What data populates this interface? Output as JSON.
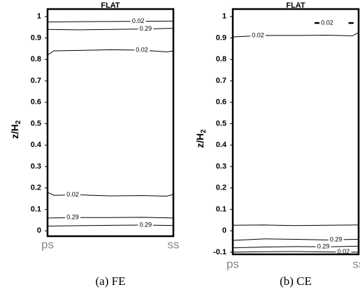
{
  "chart_data": [
    {
      "type": "contour",
      "title": "FLAT",
      "ylabel": "z/H",
      "ylabel_subscript": "2",
      "caption": "(a)  FE",
      "xlim": [
        0,
        1
      ],
      "xticks": [
        {
          "value": 0,
          "label": "ps"
        },
        {
          "value": 1,
          "label": "ss"
        }
      ],
      "ylim": [
        -0.025,
        1.035
      ],
      "yticks": [
        0,
        0.1,
        0.2,
        0.3,
        0.4,
        0.5,
        0.6,
        0.7,
        0.8,
        0.9,
        1
      ],
      "color": "#000000",
      "series": [
        {
          "name": "0.02",
          "x": [
            0,
            0.25,
            0.5,
            0.75,
            1
          ],
          "values": [
            0.975,
            0.976,
            0.977,
            0.978,
            0.979
          ]
        },
        {
          "name": "0.29",
          "x": [
            0,
            0.25,
            0.5,
            0.75,
            1
          ],
          "values": [
            0.94,
            0.938,
            0.94,
            0.942,
            0.945
          ]
        },
        {
          "name": "0.02",
          "x": [
            0,
            0.05,
            0.25,
            0.5,
            0.75,
            0.95,
            1
          ],
          "values": [
            0.82,
            0.84,
            0.842,
            0.845,
            0.843,
            0.835,
            0.84
          ]
        },
        {
          "name": "0.02",
          "x": [
            0,
            0.05,
            0.25,
            0.5,
            0.75,
            0.95,
            1
          ],
          "values": [
            0.18,
            0.166,
            0.168,
            0.163,
            0.165,
            0.162,
            0.17
          ]
        },
        {
          "name": "0.29",
          "x": [
            0,
            0.25,
            0.5,
            0.75,
            1
          ],
          "values": [
            0.06,
            0.062,
            0.062,
            0.063,
            0.06
          ]
        },
        {
          "name": "0.29",
          "x": [
            0,
            0.25,
            0.5,
            0.75,
            1
          ],
          "values": [
            0.022,
            0.024,
            0.026,
            0.027,
            0.025
          ]
        }
      ]
    },
    {
      "type": "contour",
      "title": "FLAT",
      "ylabel": "z/H",
      "ylabel_subscript": "2",
      "caption": "(b)  CE",
      "xlim": [
        0,
        1
      ],
      "xticks": [
        {
          "value": 0,
          "label": "ps"
        },
        {
          "value": 1,
          "label": "ss"
        }
      ],
      "ylim": [
        -0.11,
        1.035
      ],
      "yticks": [
        -0.1,
        0,
        0.1,
        0.2,
        0.3,
        0.4,
        0.5,
        0.6,
        0.7,
        0.8,
        0.9,
        1
      ],
      "color": "#000000",
      "series": [
        {
          "name": "0.02",
          "x": [
            0,
            0.25,
            0.5,
            0.75,
            0.95,
            1
          ],
          "values": [
            0.905,
            0.912,
            0.912,
            0.913,
            0.91,
            0.925
          ]
        },
        {
          "name": "0.02",
          "x": [
            0.65,
            0.75,
            0.8,
            0.92,
            0.96
          ],
          "values": [
            0.97,
            0.97,
            null,
            0.97,
            0.97
          ]
        },
        {
          "x": [
            0,
            0.25,
            0.5,
            0.75,
            1
          ],
          "values": [
            0.026,
            0.027,
            0.024,
            0.026,
            0.027
          ]
        },
        {
          "name": "0.29",
          "x": [
            0,
            0.25,
            0.5,
            0.75,
            1
          ],
          "values": [
            -0.045,
            -0.038,
            -0.04,
            -0.043,
            -0.04
          ]
        },
        {
          "name": "0.29",
          "x": [
            0,
            0.25,
            0.5,
            0.75,
            1
          ],
          "values": [
            -0.08,
            -0.076,
            -0.074,
            -0.075,
            -0.072
          ]
        },
        {
          "name": "0.02",
          "x": [
            0,
            0.25,
            0.5,
            0.75,
            1
          ],
          "values": [
            -0.1,
            -0.098,
            -0.097,
            -0.099,
            -0.1
          ]
        }
      ]
    }
  ]
}
